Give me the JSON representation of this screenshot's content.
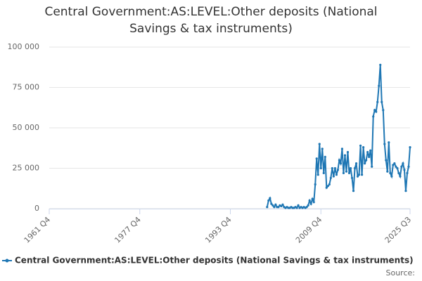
{
  "chart_data": {
    "type": "line",
    "title": "Central Government:AS:LEVEL:Other deposits (National Savings & tax instruments)",
    "source": "Source:",
    "categories": [
      "1961 Q4",
      null,
      null,
      null,
      null,
      null,
      null,
      null,
      null,
      null,
      null,
      null,
      null,
      null,
      null,
      null,
      null,
      null,
      null,
      null,
      null,
      null,
      null,
      null,
      null,
      null,
      null,
      null,
      null,
      null,
      null,
      null,
      null,
      null,
      null,
      null,
      null,
      null,
      null,
      null,
      null,
      null,
      null,
      null,
      null,
      null,
      null,
      null,
      null,
      null,
      null,
      null,
      null,
      null,
      null,
      null,
      null,
      null,
      null,
      null,
      null,
      null,
      null,
      null,
      "1977 Q4",
      null,
      null,
      null,
      null,
      null,
      null,
      null,
      null,
      null,
      null,
      null,
      null,
      null,
      null,
      null,
      null,
      null,
      null,
      null,
      null,
      null,
      null,
      null,
      null,
      null,
      null,
      null,
      null,
      null,
      null,
      null,
      null,
      null,
      null,
      null,
      null,
      null,
      null,
      null,
      null,
      null,
      null,
      null,
      null,
      null,
      null,
      null,
      null,
      null,
      null,
      null,
      null,
      null,
      null,
      null,
      null,
      null,
      null,
      null,
      null,
      null,
      null,
      null,
      "1993 Q4",
      null,
      null,
      null,
      null,
      null,
      null,
      null,
      null,
      null,
      null,
      null,
      null,
      null,
      null,
      null,
      null,
      null,
      null,
      null,
      null,
      null,
      null,
      null,
      null,
      null,
      null,
      null,
      null,
      null,
      null,
      null,
      null,
      null,
      null,
      null,
      null,
      null,
      null,
      null,
      null,
      null,
      null,
      null,
      null,
      null,
      null,
      null,
      null,
      null,
      null,
      null,
      null,
      null,
      null,
      null,
      null,
      null,
      null,
      null,
      null,
      null,
      null,
      null,
      "2009 Q4",
      null,
      null,
      null,
      null,
      null,
      null,
      null,
      null,
      null,
      null,
      null,
      null,
      null,
      null,
      null,
      null,
      null,
      null,
      null,
      null,
      null,
      null,
      null,
      null,
      null,
      null,
      null,
      null,
      null,
      null,
      null,
      null,
      null,
      null,
      null,
      null,
      null,
      null,
      null,
      null,
      null,
      null,
      null,
      null,
      null,
      null,
      null,
      null,
      null,
      null,
      null,
      null,
      null,
      null,
      null,
      null,
      null,
      null,
      null,
      null,
      null,
      null,
      "2025 Q3"
    ],
    "series": [
      {
        "name": "Central Government:AS:LEVEL:Other deposits (National Savings & tax instruments)",
        "color": "#1f77b4",
        "values": [
          null,
          null,
          null,
          null,
          null,
          null,
          null,
          null,
          null,
          null,
          null,
          null,
          null,
          null,
          null,
          null,
          null,
          null,
          null,
          null,
          null,
          null,
          null,
          null,
          null,
          null,
          null,
          null,
          null,
          null,
          null,
          null,
          null,
          null,
          null,
          null,
          null,
          null,
          null,
          null,
          null,
          null,
          null,
          null,
          null,
          null,
          null,
          null,
          null,
          null,
          null,
          null,
          null,
          null,
          null,
          null,
          null,
          null,
          null,
          null,
          null,
          null,
          null,
          null,
          null,
          null,
          null,
          null,
          null,
          null,
          null,
          null,
          null,
          null,
          null,
          null,
          null,
          null,
          null,
          null,
          null,
          null,
          null,
          null,
          null,
          null,
          null,
          null,
          null,
          null,
          null,
          null,
          null,
          null,
          null,
          null,
          null,
          null,
          null,
          null,
          null,
          null,
          null,
          null,
          null,
          null,
          null,
          null,
          null,
          null,
          null,
          null,
          null,
          null,
          null,
          null,
          null,
          null,
          null,
          null,
          null,
          null,
          null,
          null,
          null,
          null,
          null,
          null,
          null,
          null,
          null,
          null,
          null,
          null,
          null,
          null,
          null,
          null,
          null,
          null,
          null,
          null,
          null,
          null,
          null,
          null,
          null,
          null,
          null,
          null,
          null,
          null,
          null,
          null,
          1000,
          5000,
          6500,
          3000,
          2000,
          1000,
          2500,
          1000,
          1000,
          2000,
          1500,
          2500,
          1000,
          500,
          1000,
          500,
          500,
          1000,
          500,
          500,
          1000,
          500,
          2000,
          500,
          1000,
          500,
          1000,
          500,
          1000,
          2000,
          5000,
          3000,
          6000,
          4000,
          15000,
          31000,
          21000,
          40000,
          25000,
          37000,
          22000,
          32000,
          13000,
          14000,
          15000,
          19000,
          25000,
          20000,
          25000,
          21000,
          24000,
          30000,
          28000,
          37000,
          22000,
          33000,
          23000,
          35000,
          22000,
          25000,
          19000,
          11000,
          25000,
          28000,
          20000,
          21000,
          39000,
          21000,
          38000,
          28000,
          30000,
          35000,
          32000,
          36000,
          26000,
          57000,
          61000,
          60000,
          66000,
          76000,
          89000,
          66000,
          61000,
          40000,
          30000,
          23000,
          41000,
          22000,
          20000,
          27000,
          28000,
          26000,
          25000,
          22000,
          20000,
          26000,
          28000,
          24000,
          11000,
          22000,
          26000,
          38000
        ]
      }
    ],
    "ylim": [
      0,
      100000
    ],
    "yticks": [
      0,
      {
        "value": 25000,
        "label": "25 000"
      },
      {
        "value": 50000,
        "label": "50 000"
      },
      {
        "value": 75000,
        "label": "75 000"
      },
      {
        "value": 100000,
        "label": "100 000"
      }
    ],
    "grid": true
  }
}
